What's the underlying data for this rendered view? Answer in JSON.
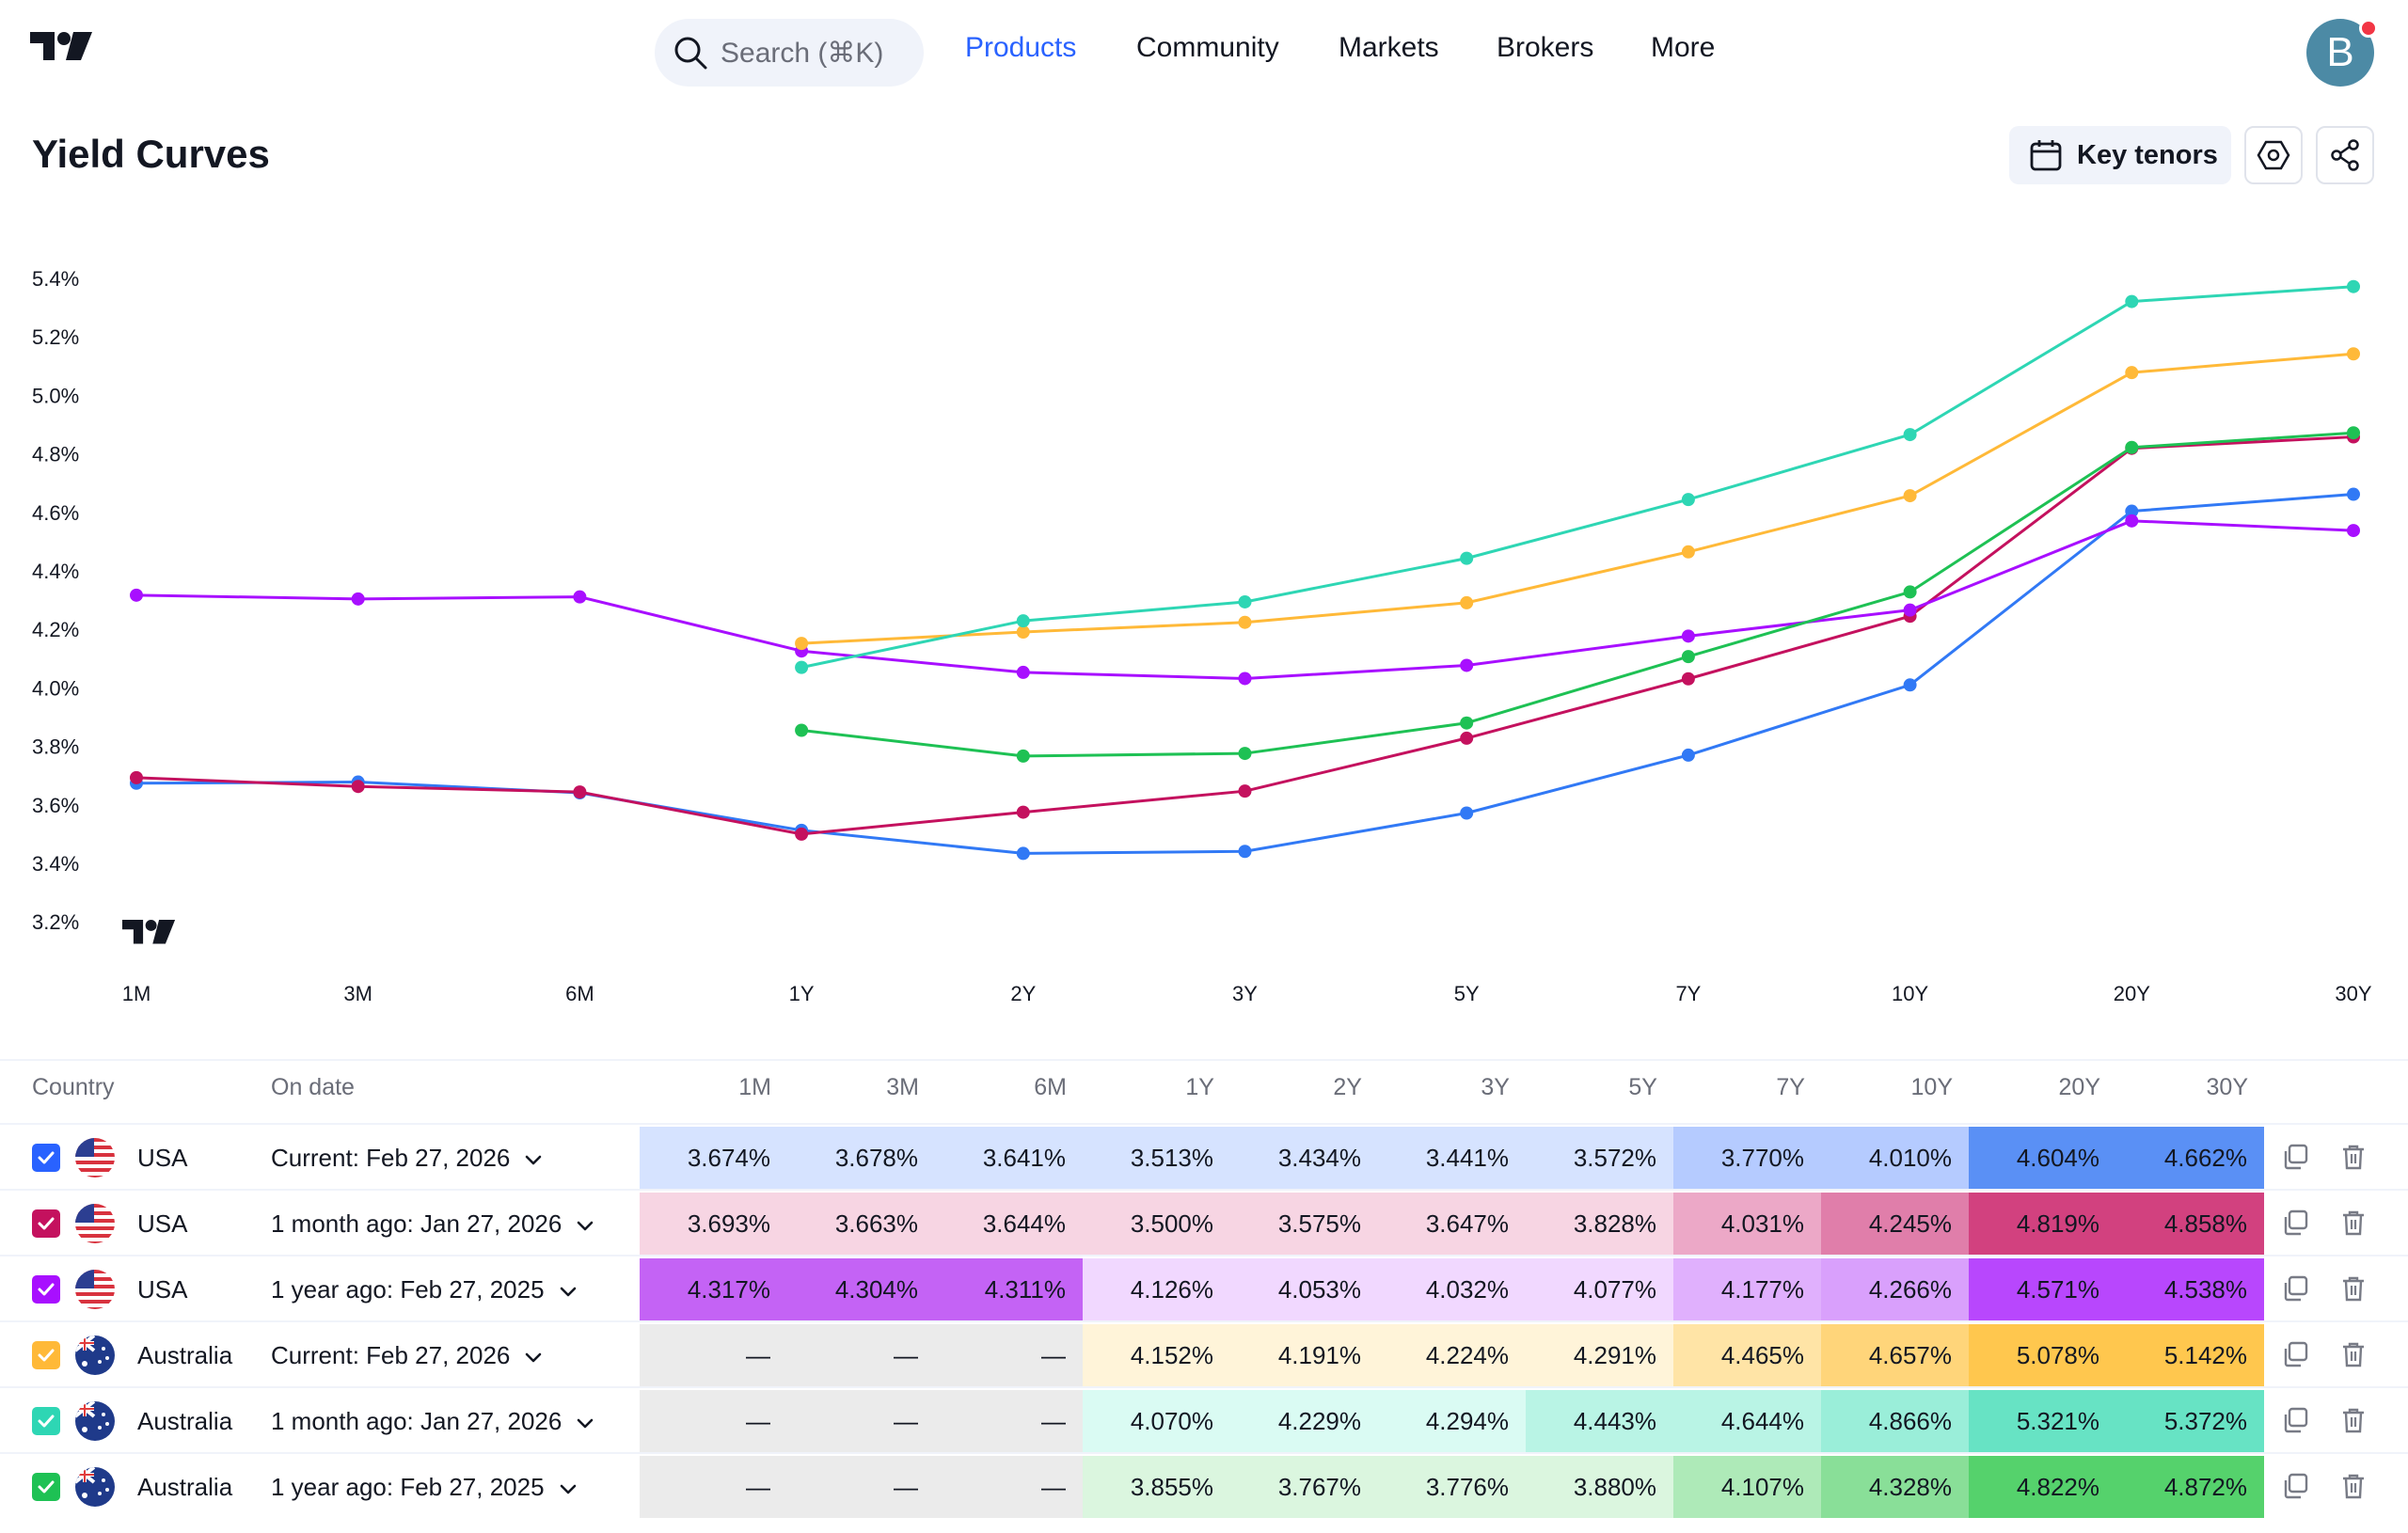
{
  "header": {
    "search_placeholder": "Search (⌘K)",
    "nav": [
      "Products",
      "Community",
      "Markets",
      "Brokers",
      "More"
    ],
    "active_nav": "Products",
    "avatar_letter": "B"
  },
  "page": {
    "title": "Yield Curves",
    "key_tenors_label": "Key tenors"
  },
  "icons": {
    "logo": "tradingview-logo",
    "search": "search-icon",
    "calendar": "calendar-icon",
    "settings": "settings-icon",
    "share": "share-icon",
    "copy": "copy-icon",
    "delete": "trash-icon",
    "dropdown": "chevron-down-icon"
  },
  "chart_data": {
    "type": "line",
    "categories": [
      "1M",
      "3M",
      "6M",
      "1Y",
      "2Y",
      "3Y",
      "5Y",
      "7Y",
      "10Y",
      "20Y",
      "30Y"
    ],
    "y_ticks": [
      "5.4%",
      "5.2%",
      "5.0%",
      "4.8%",
      "4.6%",
      "4.4%",
      "4.2%",
      "4.0%",
      "3.8%",
      "3.6%",
      "3.4%",
      "3.2%"
    ],
    "ylim": [
      3.2,
      5.4
    ],
    "grid": false,
    "series": [
      {
        "color": "#3179f5",
        "values": [
          3.674,
          3.678,
          3.641,
          3.513,
          3.434,
          3.441,
          3.572,
          3.77,
          4.01,
          4.604,
          4.662
        ]
      },
      {
        "color": "#c4115e",
        "values": [
          3.693,
          3.663,
          3.644,
          3.5,
          3.575,
          3.647,
          3.828,
          4.031,
          4.245,
          4.819,
          4.858
        ]
      },
      {
        "color": "#a80fff",
        "values": [
          4.317,
          4.304,
          4.311,
          4.126,
          4.053,
          4.032,
          4.077,
          4.177,
          4.266,
          4.571,
          4.538
        ]
      },
      {
        "color": "#ffb938",
        "values": [
          null,
          null,
          null,
          4.152,
          4.191,
          4.224,
          4.291,
          4.465,
          4.657,
          5.078,
          5.142
        ]
      },
      {
        "color": "#2ed6b4",
        "values": [
          null,
          null,
          null,
          4.07,
          4.229,
          4.294,
          4.443,
          4.644,
          4.866,
          5.321,
          5.372
        ]
      },
      {
        "color": "#1ec154",
        "values": [
          null,
          null,
          null,
          3.855,
          3.767,
          3.776,
          3.88,
          4.107,
          4.328,
          4.822,
          4.872
        ]
      }
    ]
  },
  "table": {
    "headers": {
      "country": "Country",
      "date": "On date",
      "tenors": [
        "1M",
        "3M",
        "6M",
        "1Y",
        "2Y",
        "3Y",
        "5Y",
        "7Y",
        "10Y",
        "20Y",
        "30Y"
      ]
    },
    "rows": [
      {
        "country": "USA",
        "flag": "us-flag",
        "checkbox_color": "#2962ff",
        "date": "Current: Feb 27, 2026",
        "cells": [
          "3.674%",
          "3.678%",
          "3.641%",
          "3.513%",
          "3.434%",
          "3.441%",
          "3.572%",
          "3.770%",
          "4.010%",
          "4.604%",
          "4.662%"
        ],
        "colors": [
          "#d6e3ff",
          "#d6e3ff",
          "#d6e3ff",
          "#d6e3ff",
          "#d6e3ff",
          "#d6e3ff",
          "#d6e3ff",
          "#b5cbff",
          "#b5cbff",
          "#5a90f5",
          "#5a90f5"
        ]
      },
      {
        "country": "USA",
        "flag": "us-flag",
        "checkbox_color": "#c4115e",
        "date": "1 month ago: Jan 27, 2026",
        "cells": [
          "3.693%",
          "3.663%",
          "3.644%",
          "3.500%",
          "3.575%",
          "3.647%",
          "3.828%",
          "4.031%",
          "4.245%",
          "4.819%",
          "4.858%"
        ],
        "colors": [
          "#f7d5e3",
          "#f7d5e3",
          "#f7d5e3",
          "#f7d5e3",
          "#f7d5e3",
          "#f7d5e3",
          "#f7d5e3",
          "#eca8c7",
          "#e07eaa",
          "#d2417f",
          "#d2417f"
        ]
      },
      {
        "country": "USA",
        "flag": "us-flag",
        "checkbox_color": "#a80fff",
        "date": "1 year ago: Feb 27, 2025",
        "cells": [
          "4.317%",
          "4.304%",
          "4.311%",
          "4.126%",
          "4.053%",
          "4.032%",
          "4.077%",
          "4.177%",
          "4.266%",
          "4.571%",
          "4.538%"
        ],
        "colors": [
          "#c463f5",
          "#c463f5",
          "#c463f5",
          "#f1d8ff",
          "#f1d8ff",
          "#f1d8ff",
          "#f1d8ff",
          "#e0b0fd",
          "#d9a0fc",
          "#b847fd",
          "#b847fd"
        ]
      },
      {
        "country": "Australia",
        "flag": "au-flag",
        "checkbox_color": "#ffb938",
        "date": "Current: Feb 27, 2026",
        "cells": [
          "—",
          "—",
          "—",
          "4.152%",
          "4.191%",
          "4.224%",
          "4.291%",
          "4.465%",
          "4.657%",
          "5.078%",
          "5.142%"
        ],
        "colors": [
          "#ebebeb",
          "#ebebeb",
          "#ebebeb",
          "#fff4d9",
          "#fff4d9",
          "#fff4d9",
          "#fff4d9",
          "#ffe4a6",
          "#ffd57a",
          "#ffc74e",
          "#ffc74e"
        ]
      },
      {
        "country": "Australia",
        "flag": "au-flag",
        "checkbox_color": "#2ed6b4",
        "date": "1 month ago: Jan 27, 2026",
        "cells": [
          "—",
          "—",
          "—",
          "4.070%",
          "4.229%",
          "4.294%",
          "4.443%",
          "4.644%",
          "4.866%",
          "5.321%",
          "5.372%"
        ],
        "colors": [
          "#ebebeb",
          "#ebebeb",
          "#ebebeb",
          "#dafbf3",
          "#dafbf3",
          "#dafbf3",
          "#b9f4e5",
          "#b9f4e5",
          "#9aeed9",
          "#67e3c4",
          "#67e3c4"
        ]
      },
      {
        "country": "Australia",
        "flag": "au-flag",
        "checkbox_color": "#1ec154",
        "date": "1 year ago: Feb 27, 2025",
        "cells": [
          "—",
          "—",
          "—",
          "3.855%",
          "3.767%",
          "3.776%",
          "3.880%",
          "4.107%",
          "4.328%",
          "4.822%",
          "4.872%"
        ],
        "colors": [
          "#ebebeb",
          "#ebebeb",
          "#ebebeb",
          "#dbf6df",
          "#dbf6df",
          "#dbf6df",
          "#dbf6df",
          "#aeeab8",
          "#89df98",
          "#55d26c",
          "#55d26c"
        ]
      }
    ]
  }
}
